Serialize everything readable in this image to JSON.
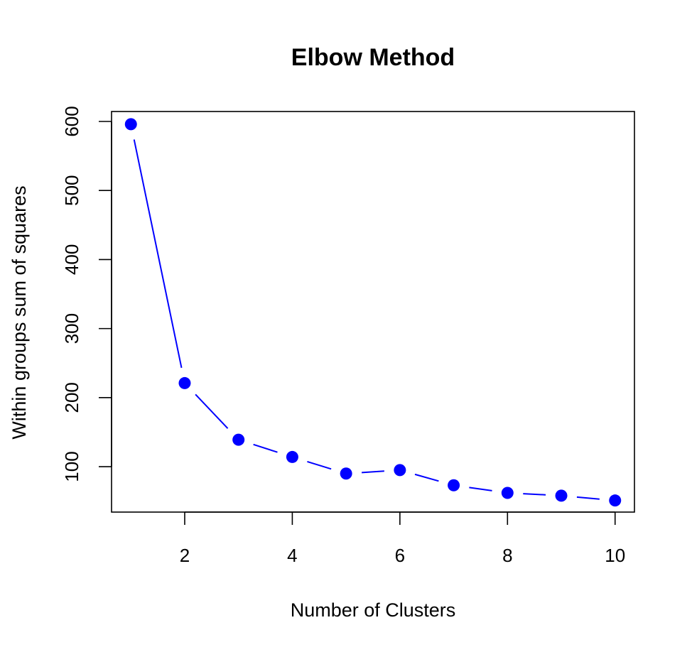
{
  "chart_data": {
    "type": "line",
    "title": "Elbow Method",
    "xlabel": "Number of Clusters",
    "ylabel": "Within groups sum of squares",
    "x": [
      1,
      2,
      3,
      4,
      5,
      6,
      7,
      8,
      9,
      10
    ],
    "series": [
      {
        "values": [
          596,
          221,
          139,
          114,
          90,
          95,
          73,
          62,
          58,
          51
        ]
      }
    ],
    "xticks": [
      2,
      4,
      6,
      8,
      10
    ],
    "yticks": [
      100,
      200,
      300,
      400,
      500,
      600
    ],
    "xlim": [
      0.64,
      10.36
    ],
    "ylim": [
      34.2,
      614.4
    ],
    "grid": false,
    "colors": {
      "series": "#0000ff",
      "axis": "#000000"
    }
  }
}
